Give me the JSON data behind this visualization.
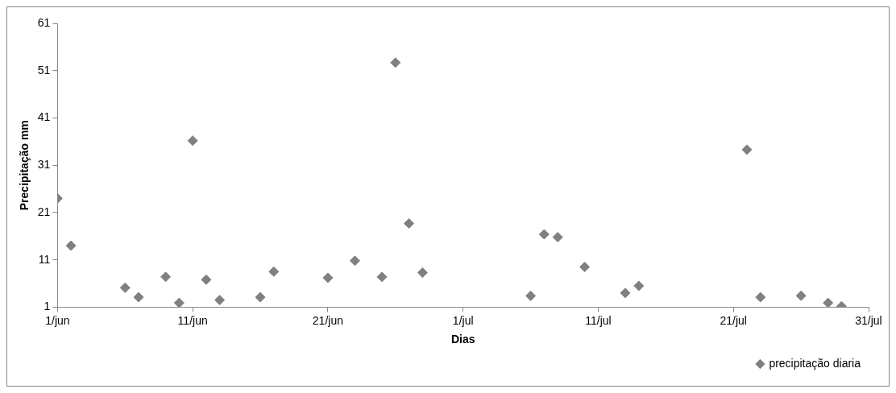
{
  "chart_data": {
    "type": "scatter",
    "xlabel": "Dias",
    "ylabel": "Precipitação mm",
    "series": [
      {
        "name": "precipitação diaria",
        "color": "#808080",
        "marker": "diamond",
        "x": [
          "--06-01",
          "--06-02",
          "--06-06",
          "--06-07",
          "--06-09",
          "--06-10",
          "--06-11",
          "--06-12",
          "--06-13",
          "--06-16",
          "--06-17",
          "--06-21",
          "--06-23",
          "--06-25",
          "--06-26",
          "--06-27",
          "--06-28",
          "--07-06",
          "--07-07",
          "--07-08",
          "--07-10",
          "--07-13",
          "--07-14",
          "--07-22",
          "--07-23",
          "--07-26",
          "--07-28",
          "--07-29"
        ],
        "values": [
          24,
          14,
          5.1,
          3.1,
          7.4,
          1.9,
          36.2,
          6.8,
          2.5,
          3.1,
          8.5,
          7.2,
          10.8,
          7.4,
          52.7,
          18.7,
          8.3,
          3.4,
          16.4,
          15.8,
          9.5,
          4,
          5.5,
          34.3,
          3.1,
          3.4,
          1.9,
          1.2
        ]
      }
    ],
    "xlim": [
      "--06-01",
      "--07-31"
    ],
    "xticks": [
      {
        "value": "--06-01",
        "label": "1/jun"
      },
      {
        "value": "--06-11",
        "label": "11/jun"
      },
      {
        "value": "--06-21",
        "label": "21/jun"
      },
      {
        "value": "--07-01",
        "label": "1/jul"
      },
      {
        "value": "--07-11",
        "label": "11/jul"
      },
      {
        "value": "--07-21",
        "label": "21/jul"
      },
      {
        "value": "--07-31",
        "label": "31/jul"
      }
    ],
    "ylim": [
      1,
      61
    ],
    "yticks": [
      1,
      11,
      21,
      31,
      41,
      51,
      61
    ],
    "grid": false,
    "legend": "bottom right"
  }
}
